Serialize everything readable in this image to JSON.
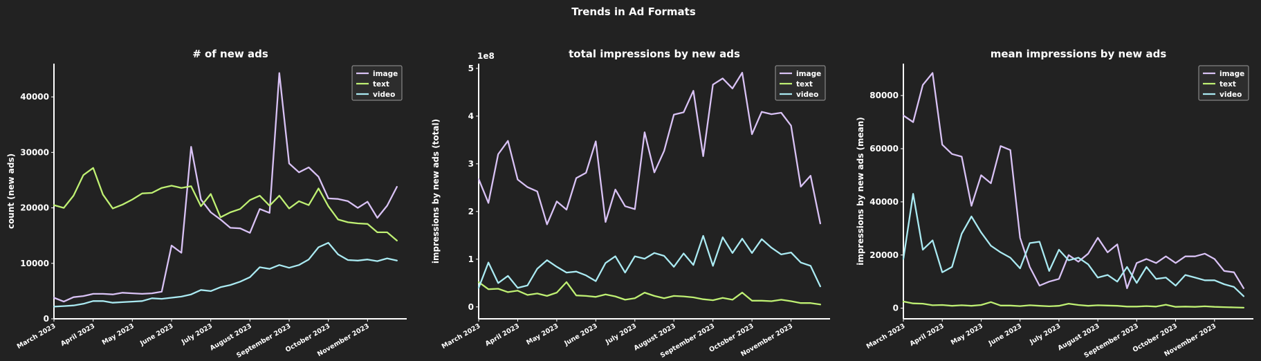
{
  "figure": {
    "suptitle": "Trends in Ad Formats",
    "background": "#222222",
    "series_colors": {
      "image": "#d9c2f5",
      "text": "#bff073",
      "video": "#aaeaf2"
    }
  },
  "chart_data": [
    {
      "type": "line",
      "title": "# of new ads",
      "xlabel": "",
      "ylabel": "count (new ads)",
      "ylim": [
        0,
        46000
      ],
      "yticks": [
        0,
        10000,
        20000,
        30000,
        40000
      ],
      "ytick_labels": [
        "0",
        "10000",
        "20000",
        "30000",
        "40000"
      ],
      "y_exponent": "",
      "xlim": [
        0,
        36
      ],
      "xtick_positions": [
        0,
        4,
        8,
        12,
        16,
        20,
        24,
        28,
        32
      ],
      "xtick_labels": [
        "March 2023",
        "April 2023",
        "May 2023",
        "June 2023",
        "July 2023",
        "August 2023",
        "September 2023",
        "October 2023",
        "November 2023"
      ],
      "legend_position": "top-right",
      "grid": false,
      "series": [
        {
          "name": "image",
          "values": [
            3800,
            3100,
            3900,
            4100,
            4500,
            4500,
            4400,
            4700,
            4600,
            4500,
            4600,
            4900,
            13200,
            11900,
            31000,
            21500,
            19200,
            17900,
            16400,
            16300,
            15500,
            19800,
            19100,
            44300,
            28000,
            26400,
            27300,
            25600,
            21700,
            21600,
            21200,
            20000,
            21100,
            18200,
            20400,
            23800
          ]
        },
        {
          "name": "text",
          "values": [
            20500,
            20000,
            22200,
            25900,
            27200,
            22400,
            19900,
            20600,
            21500,
            22600,
            22700,
            23600,
            24000,
            23600,
            23900,
            20300,
            22500,
            18300,
            19200,
            19800,
            21400,
            22200,
            20400,
            22200,
            19900,
            21200,
            20500,
            23500,
            20300,
            17900,
            17400,
            17200,
            17100,
            15600,
            15600,
            14100
          ]
        },
        {
          "name": "video",
          "values": [
            2200,
            2300,
            2400,
            2700,
            3200,
            3200,
            2900,
            3000,
            3100,
            3200,
            3700,
            3600,
            3800,
            4000,
            4400,
            5200,
            5000,
            5700,
            6100,
            6700,
            7500,
            9300,
            9000,
            9700,
            9200,
            9700,
            10700,
            12900,
            13700,
            11600,
            10600,
            10500,
            10700,
            10400,
            10900,
            10500
          ]
        }
      ]
    },
    {
      "type": "line",
      "title": "total impressions by new ads",
      "xlabel": "",
      "ylabel": "impressions by new ads (total)",
      "ylim": [
        -0.25,
        5.1
      ],
      "yticks": [
        0,
        1,
        2,
        3,
        4,
        5
      ],
      "ytick_labels": [
        "0",
        "1",
        "2",
        "3",
        "4",
        "5"
      ],
      "y_exponent": "1e8",
      "xlim": [
        0,
        36
      ],
      "xtick_positions": [
        0,
        4,
        8,
        12,
        16,
        20,
        24,
        28,
        32
      ],
      "xtick_labels": [
        "March 2023",
        "April 2023",
        "May 2023",
        "June 2023",
        "July 2023",
        "August 2023",
        "September 2023",
        "October 2023",
        "November 2023"
      ],
      "legend_position": "top-right",
      "grid": false,
      "series": [
        {
          "name": "image",
          "values": [
            2.68,
            2.18,
            3.2,
            3.48,
            2.67,
            2.51,
            2.42,
            1.73,
            2.21,
            2.04,
            2.7,
            2.81,
            3.47,
            1.78,
            2.46,
            2.11,
            2.05,
            3.66,
            2.82,
            3.27,
            4.03,
            4.08,
            4.53,
            3.16,
            4.66,
            4.79,
            4.58,
            4.91,
            3.62,
            4.09,
            4.04,
            4.07,
            3.8,
            2.52,
            2.75,
            1.75
          ]
        },
        {
          "name": "text",
          "values": [
            0.52,
            0.37,
            0.38,
            0.31,
            0.34,
            0.25,
            0.28,
            0.23,
            0.3,
            0.52,
            0.24,
            0.23,
            0.21,
            0.26,
            0.22,
            0.15,
            0.18,
            0.3,
            0.23,
            0.18,
            0.23,
            0.22,
            0.2,
            0.16,
            0.14,
            0.19,
            0.15,
            0.3,
            0.13,
            0.13,
            0.12,
            0.15,
            0.12,
            0.08,
            0.08,
            0.05
          ]
        },
        {
          "name": "video",
          "values": [
            0.4,
            0.93,
            0.5,
            0.65,
            0.4,
            0.45,
            0.8,
            0.98,
            0.84,
            0.72,
            0.74,
            0.66,
            0.54,
            0.92,
            1.06,
            0.72,
            1.06,
            1.01,
            1.13,
            1.07,
            0.84,
            1.12,
            0.88,
            1.49,
            0.86,
            1.46,
            1.13,
            1.43,
            1.13,
            1.42,
            1.24,
            1.1,
            1.14,
            0.93,
            0.86,
            0.43
          ]
        }
      ]
    },
    {
      "type": "line",
      "title": "mean impressions by new ads",
      "xlabel": "",
      "ylabel": "impressions by new ads (mean)",
      "ylim": [
        -4000,
        92000
      ],
      "yticks": [
        0,
        20000,
        40000,
        60000,
        80000
      ],
      "ytick_labels": [
        "0",
        "20000",
        "40000",
        "60000",
        "80000"
      ],
      "y_exponent": "",
      "xlim": [
        0,
        36
      ],
      "xtick_positions": [
        0,
        4,
        8,
        12,
        16,
        20,
        24,
        28,
        32
      ],
      "xtick_labels": [
        "March 2023",
        "April 2023",
        "May 2023",
        "June 2023",
        "July 2023",
        "August 2023",
        "September 2023",
        "October 2023",
        "November 2023"
      ],
      "legend_position": "top-right",
      "grid": false,
      "series": [
        {
          "name": "image",
          "values": [
            72500,
            70000,
            84000,
            88500,
            61500,
            58000,
            57000,
            38500,
            50000,
            47000,
            61000,
            59500,
            26500,
            15500,
            8500,
            10000,
            11000,
            20000,
            17500,
            20500,
            26500,
            21000,
            24000,
            7500,
            17000,
            18500,
            17000,
            19500,
            17000,
            19500,
            19500,
            20500,
            18500,
            14000,
            13500,
            7500
          ]
        },
        {
          "name": "text",
          "values": [
            2500,
            1800,
            1700,
            1100,
            1200,
            900,
            1100,
            900,
            1200,
            2300,
            1000,
            1000,
            800,
            1100,
            900,
            700,
            900,
            1700,
            1200,
            900,
            1100,
            1000,
            900,
            600,
            600,
            800,
            600,
            1300,
            500,
            600,
            500,
            700,
            500,
            400,
            300,
            200
          ]
        },
        {
          "name": "video",
          "values": [
            18500,
            43000,
            22000,
            25500,
            13500,
            15500,
            28000,
            34500,
            28500,
            23500,
            21000,
            19000,
            15000,
            24500,
            25000,
            14000,
            22000,
            18000,
            19000,
            16500,
            11500,
            12500,
            10000,
            15500,
            9500,
            15500,
            11000,
            11500,
            8500,
            12500,
            11500,
            10500,
            10500,
            9000,
            8000,
            4500
          ]
        }
      ]
    }
  ]
}
